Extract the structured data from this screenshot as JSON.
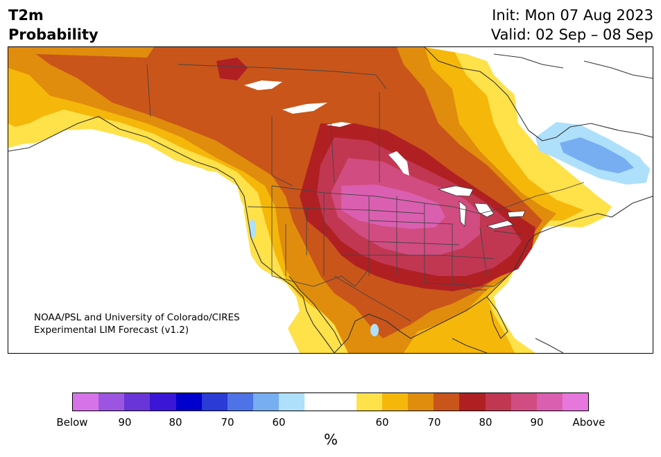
{
  "title": {
    "line1": "T2m",
    "line2": "Probability"
  },
  "dates": {
    "init": "Init: Mon 07 Aug 2023",
    "valid": "Valid: 02 Sep – 08 Sep"
  },
  "credit": {
    "line1": "NOAA/PSL and University of Colorado/CIRES",
    "line2": "Experimental LIM Forecast (v1.2)"
  },
  "colorbar": {
    "unit": "%",
    "colors": [
      "#d673e8",
      "#9b55e0",
      "#6a35d8",
      "#3c16d6",
      "#0000cc",
      "#2a3bd6",
      "#4e73e6",
      "#77aef2",
      "#aee0fc",
      "#ffffff",
      "#ffffff",
      "#ffe14a",
      "#f5b70a",
      "#e08c0d",
      "#c9551a",
      "#b02023",
      "#c13752",
      "#d14c80",
      "#db5fb0",
      "#e677dc"
    ],
    "ticks": [
      "Below",
      "90",
      "80",
      "70",
      "60",
      "60",
      "70",
      "80",
      "90",
      "Above"
    ]
  },
  "colors": {
    "above_60": "#ffe14a",
    "above_70a": "#f5b70a",
    "above_70b": "#e08c0d",
    "above_80a": "#c9551a",
    "above_80b": "#b02023",
    "above_90a": "#c13752",
    "above_90b": "#d14c80",
    "above_95": "#db5fb0",
    "below_60": "#aee0fc",
    "below_70": "#77aef2"
  }
}
